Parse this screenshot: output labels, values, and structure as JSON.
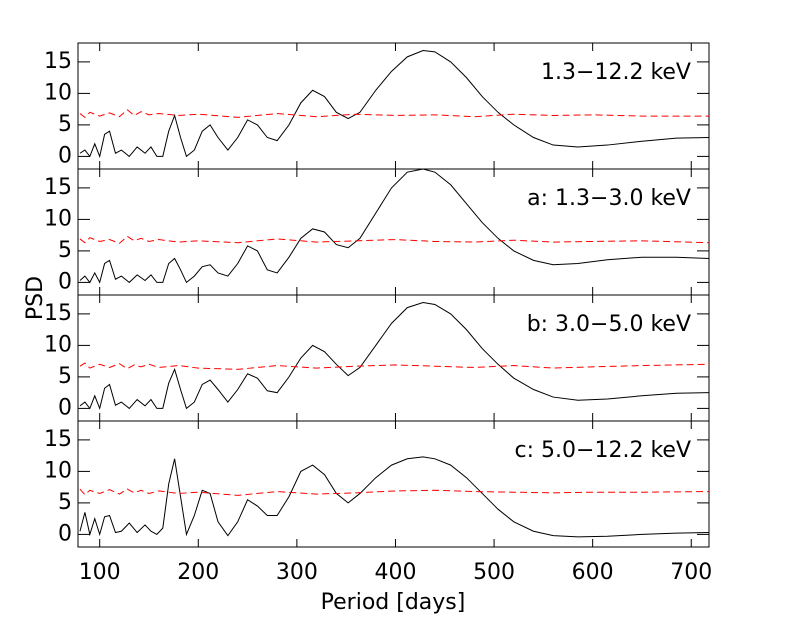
{
  "y_label": "PSD",
  "x_label": "Period [days]",
  "chart_data": [
    {
      "type": "line",
      "annotation": "1.3−12.2 keV",
      "x": [
        80,
        85,
        90,
        95,
        100,
        105,
        110,
        116,
        122,
        130,
        138,
        146,
        152,
        158,
        164,
        170,
        176,
        182,
        188,
        196,
        204,
        212,
        220,
        230,
        240,
        250,
        260,
        270,
        280,
        292,
        304,
        316,
        328,
        340,
        352,
        364,
        380,
        396,
        412,
        428,
        440,
        456,
        472,
        488,
        504,
        520,
        540,
        560,
        585,
        615,
        650,
        685,
        718
      ],
      "xlim": [
        78,
        718
      ],
      "xticks": [
        100,
        200,
        300,
        400,
        500,
        600,
        700
      ],
      "ylim": [
        -2,
        18
      ],
      "yticks": [
        0,
        5,
        10,
        15
      ],
      "series": [
        {
          "color": "#000000",
          "values": [
            0.5,
            1,
            0,
            2,
            0,
            3.5,
            4,
            0.5,
            1,
            0,
            1.5,
            0.5,
            1.5,
            0,
            0,
            4,
            6.5,
            3,
            0,
            1,
            4,
            5,
            3,
            1,
            3,
            5.8,
            5,
            3,
            2.5,
            5,
            8.5,
            10.5,
            9.5,
            7,
            6,
            7,
            10.5,
            13.5,
            15.8,
            16.8,
            16.6,
            15,
            12.5,
            9.5,
            7,
            5,
            3,
            1.8,
            1.5,
            1.8,
            2.4,
            2.9,
            3
          ]
        },
        {
          "color": "#ff0000",
          "dashed": true,
          "x": [
            80,
            85,
            90,
            100,
            110,
            120,
            128,
            135,
            142,
            150,
            160,
            180,
            200,
            240,
            280,
            320,
            360,
            400,
            440,
            480,
            520,
            560,
            600,
            650,
            718
          ],
          "values": [
            6.8,
            6.2,
            7,
            6.4,
            6.9,
            6.3,
            7.4,
            6.5,
            7.1,
            6.6,
            6.8,
            6.5,
            6.7,
            6.2,
            6.8,
            6.3,
            6.7,
            6.5,
            6.6,
            6.3,
            6.7,
            6.5,
            6.6,
            6.4,
            6.4
          ]
        }
      ]
    },
    {
      "type": "line",
      "annotation": "a: 1.3−3.0 keV",
      "x": [
        80,
        85,
        90,
        95,
        100,
        105,
        110,
        116,
        122,
        130,
        138,
        146,
        152,
        158,
        164,
        170,
        176,
        182,
        188,
        196,
        204,
        212,
        220,
        230,
        240,
        250,
        260,
        270,
        280,
        292,
        304,
        316,
        328,
        340,
        352,
        364,
        380,
        396,
        412,
        428,
        440,
        456,
        472,
        488,
        504,
        520,
        540,
        560,
        585,
        615,
        650,
        685,
        718
      ],
      "xlim": [
        78,
        718
      ],
      "xticks": [
        100,
        200,
        300,
        400,
        500,
        600,
        700
      ],
      "ylim": [
        -2,
        18
      ],
      "yticks": [
        0,
        5,
        10,
        15
      ],
      "series": [
        {
          "color": "#000000",
          "values": [
            0.3,
            1,
            0,
            1.5,
            0,
            3,
            3.5,
            0.5,
            1,
            0,
            1.2,
            0.3,
            1.2,
            0,
            0,
            3,
            3.8,
            2,
            0,
            1,
            2.5,
            2.8,
            1.5,
            1,
            3,
            5.8,
            5,
            2,
            1.5,
            4,
            7,
            8.5,
            8,
            6,
            5.5,
            7,
            11,
            15,
            17.5,
            18,
            17.5,
            15.5,
            12.5,
            9.5,
            7,
            5,
            3.5,
            2.8,
            3,
            3.6,
            4,
            4,
            3.8
          ]
        },
        {
          "color": "#ff0000",
          "dashed": true,
          "x": [
            80,
            85,
            90,
            100,
            110,
            120,
            128,
            135,
            142,
            150,
            160,
            180,
            200,
            240,
            280,
            320,
            360,
            400,
            440,
            480,
            520,
            560,
            600,
            650,
            718
          ],
          "values": [
            6.9,
            6.3,
            7.1,
            6.5,
            6.8,
            6.2,
            7.3,
            6.6,
            7,
            6.5,
            6.8,
            6.4,
            6.6,
            6.3,
            6.9,
            6.4,
            6.6,
            6.8,
            6.5,
            6.4,
            6.7,
            6.4,
            6.5,
            6.6,
            6.3
          ]
        }
      ]
    },
    {
      "type": "line",
      "annotation": "b: 3.0−5.0 keV",
      "x": [
        80,
        85,
        90,
        95,
        100,
        105,
        110,
        116,
        122,
        130,
        138,
        146,
        152,
        158,
        164,
        170,
        176,
        182,
        188,
        196,
        204,
        212,
        220,
        230,
        240,
        250,
        260,
        270,
        280,
        292,
        304,
        316,
        328,
        340,
        352,
        364,
        380,
        396,
        412,
        428,
        440,
        456,
        472,
        488,
        504,
        520,
        540,
        560,
        585,
        615,
        650,
        685,
        718
      ],
      "xlim": [
        78,
        718
      ],
      "xticks": [
        100,
        200,
        300,
        400,
        500,
        600,
        700
      ],
      "ylim": [
        -2,
        18
      ],
      "yticks": [
        0,
        5,
        10,
        15
      ],
      "series": [
        {
          "color": "#000000",
          "values": [
            0.4,
            1,
            0,
            2,
            0,
            3.2,
            3.8,
            0.5,
            1,
            0,
            1.4,
            0.4,
            1.4,
            0,
            0,
            4,
            6.2,
            3,
            0,
            1,
            3.8,
            4.5,
            3,
            1,
            3,
            5.5,
            4.8,
            2.8,
            2.5,
            5,
            8,
            10,
            9,
            7,
            5.2,
            6.5,
            10,
            13.5,
            16,
            16.8,
            16.5,
            15,
            12.5,
            9.5,
            7,
            4.8,
            3,
            1.8,
            1.3,
            1.5,
            2,
            2.4,
            2.5
          ]
        },
        {
          "color": "#ff0000",
          "dashed": true,
          "x": [
            80,
            85,
            90,
            100,
            110,
            120,
            128,
            135,
            142,
            150,
            160,
            180,
            200,
            240,
            280,
            320,
            360,
            400,
            440,
            480,
            520,
            560,
            600,
            650,
            718
          ],
          "values": [
            6.7,
            7.2,
            6.4,
            7,
            6.5,
            7.1,
            6.3,
            6.9,
            6.6,
            7,
            6.5,
            6.8,
            6.4,
            6.2,
            6.8,
            6.4,
            6.7,
            6.9,
            6.7,
            6.5,
            6.8,
            6.4,
            6.6,
            6.8,
            7
          ]
        }
      ]
    },
    {
      "type": "line",
      "annotation": "c: 5.0−12.2 keV",
      "x": [
        80,
        85,
        90,
        95,
        100,
        105,
        110,
        116,
        122,
        130,
        138,
        146,
        152,
        158,
        164,
        170,
        176,
        182,
        188,
        196,
        204,
        212,
        220,
        230,
        240,
        250,
        260,
        270,
        280,
        292,
        304,
        316,
        328,
        340,
        352,
        364,
        380,
        396,
        412,
        428,
        440,
        456,
        472,
        488,
        504,
        520,
        540,
        560,
        585,
        615,
        650,
        685,
        718
      ],
      "xlim": [
        78,
        718
      ],
      "xticks": [
        100,
        200,
        300,
        400,
        500,
        600,
        700
      ],
      "ylim": [
        -2,
        18
      ],
      "yticks": [
        0,
        5,
        10,
        15
      ],
      "series": [
        {
          "color": "#000000",
          "values": [
            0.5,
            3.5,
            0,
            2.5,
            0,
            2.8,
            3,
            0.3,
            0.5,
            1.8,
            0.3,
            1.5,
            0.5,
            0,
            1,
            8,
            12,
            6,
            0,
            3,
            7,
            6.5,
            2,
            -0.2,
            2,
            5.5,
            4.5,
            3,
            3,
            6,
            10,
            11,
            9.5,
            6.5,
            5,
            6.5,
            9,
            11,
            12,
            12.3,
            12,
            11,
            9,
            6.5,
            4,
            2,
            0.5,
            -0.2,
            -0.4,
            -0.3,
            0,
            0.2,
            0.3
          ]
        },
        {
          "color": "#ff0000",
          "dashed": true,
          "x": [
            80,
            85,
            90,
            100,
            110,
            120,
            128,
            135,
            142,
            150,
            160,
            180,
            200,
            240,
            280,
            320,
            360,
            400,
            440,
            480,
            520,
            560,
            600,
            650,
            718
          ],
          "values": [
            7.2,
            6.3,
            7,
            6.5,
            7.1,
            6.4,
            7.2,
            6.6,
            7,
            6.5,
            6.9,
            6.5,
            6.7,
            6.2,
            6.8,
            6.4,
            6.6,
            6.9,
            7,
            6.8,
            6.7,
            6.6,
            6.7,
            6.7,
            6.8
          ]
        }
      ]
    }
  ]
}
